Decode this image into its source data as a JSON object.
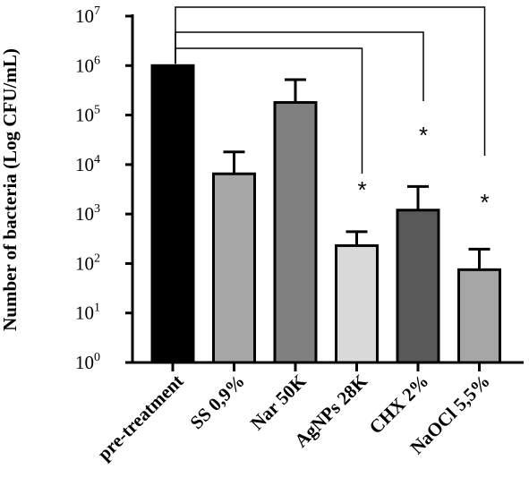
{
  "chart_data": {
    "type": "bar",
    "ylabel": "Number of bacteria (Log CFU/mL)",
    "xlabel": "",
    "yscale": "log",
    "ylim": [
      1,
      10000000
    ],
    "ytick_base": "10",
    "yticks": [
      {
        "value": 1,
        "exp": "0"
      },
      {
        "value": 10,
        "exp": "1"
      },
      {
        "value": 100,
        "exp": "2"
      },
      {
        "value": 1000,
        "exp": "3"
      },
      {
        "value": 10000,
        "exp": "4"
      },
      {
        "value": 100000,
        "exp": "5"
      },
      {
        "value": 1000000,
        "exp": "6"
      },
      {
        "value": 10000000,
        "exp": "7"
      }
    ],
    "categories": [
      "pre-treatment",
      "SS 0,9%",
      "Nar 50K",
      "AgNPs 28K",
      "CHX 2%",
      "NaOCl 5,5%"
    ],
    "values": [
      1000000,
      6500,
      180000,
      230,
      1200,
      75
    ],
    "error_upper": [
      null,
      18000,
      520000,
      440,
      3600,
      195
    ],
    "bar_colors": [
      "#000000",
      "#a6a6a6",
      "#808080",
      "#d9d9d9",
      "#595959",
      "#a6a6a6"
    ],
    "significance": [
      "",
      "",
      "",
      "*",
      "*",
      "*"
    ],
    "comparison_brackets": [
      {
        "from": "pre-treatment",
        "to": "AgNPs 28K"
      },
      {
        "from": "pre-treatment",
        "to": "CHX 2%"
      },
      {
        "from": "pre-treatment",
        "to": "NaOCl 5,5%"
      }
    ],
    "grid": false,
    "legend": "none"
  }
}
